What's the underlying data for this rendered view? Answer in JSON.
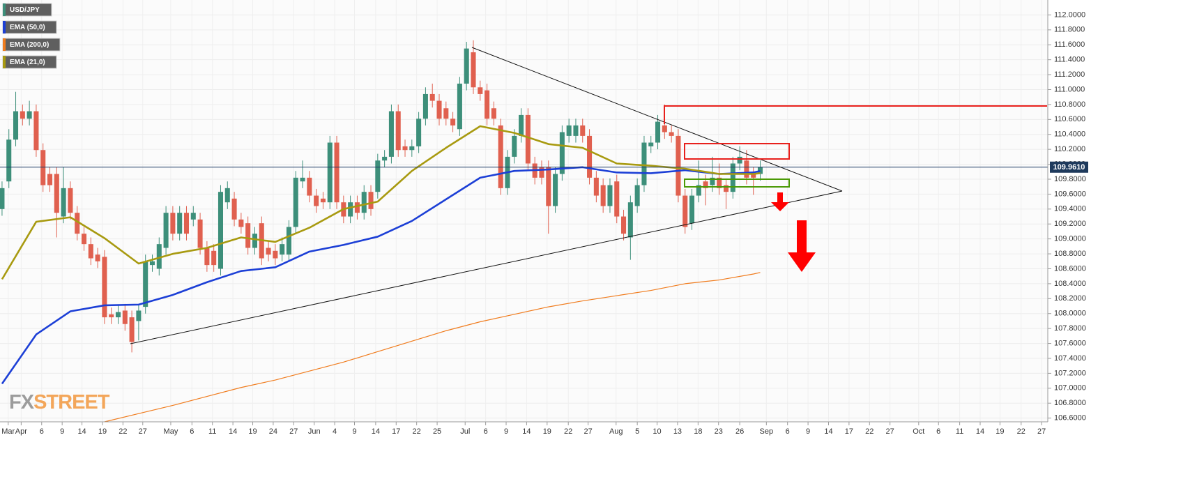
{
  "chart_data": {
    "type": "candlestick",
    "xlim": [
      -0.3,
      153.1
    ],
    "ylim": [
      106.55,
      112.2
    ],
    "grid": true,
    "yticks": [
      {
        "value": 106.6,
        "label": "106.6000"
      },
      {
        "value": 106.8,
        "label": "106.8000"
      },
      {
        "value": 107.0,
        "label": "107.0000"
      },
      {
        "value": 107.2,
        "label": "107.2000"
      },
      {
        "value": 107.4,
        "label": "107.4000"
      },
      {
        "value": 107.6,
        "label": "107.6000"
      },
      {
        "value": 107.8,
        "label": "107.8000"
      },
      {
        "value": 108.0,
        "label": "108.0000"
      },
      {
        "value": 108.2,
        "label": "108.2000"
      },
      {
        "value": 108.4,
        "label": "108.4000"
      },
      {
        "value": 108.6,
        "label": "108.6000"
      },
      {
        "value": 108.8,
        "label": "108.8000"
      },
      {
        "value": 109.0,
        "label": "109.0000"
      },
      {
        "value": 109.2,
        "label": "109.2000"
      },
      {
        "value": 109.4,
        "label": "109.4000"
      },
      {
        "value": 109.6,
        "label": "109.6000"
      },
      {
        "value": 109.8,
        "label": "109.8000"
      },
      {
        "value": 110.0,
        "label": "110.0000"
      },
      {
        "value": 110.2,
        "label": "110.2000"
      },
      {
        "value": 110.4,
        "label": "110.4000"
      },
      {
        "value": 110.6,
        "label": "110.6000"
      },
      {
        "value": 110.8,
        "label": "110.8000"
      },
      {
        "value": 111.0,
        "label": "111.0000"
      },
      {
        "value": 111.2,
        "label": "111.2000"
      },
      {
        "value": 111.4,
        "label": "111.4000"
      },
      {
        "value": 111.6,
        "label": "111.6000"
      },
      {
        "value": 111.8,
        "label": "111.8000"
      },
      {
        "value": 112.0,
        "label": "112.0000"
      }
    ],
    "xticks": [
      {
        "value": 0.9,
        "label": "Mar"
      },
      {
        "value": 2.8,
        "label": "Apr"
      },
      {
        "value": 5.8,
        "label": "6"
      },
      {
        "value": 8.8,
        "label": "9"
      },
      {
        "value": 11.7,
        "label": "14"
      },
      {
        "value": 14.7,
        "label": "19"
      },
      {
        "value": 17.7,
        "label": "22"
      },
      {
        "value": 20.6,
        "label": "27"
      },
      {
        "value": 24.7,
        "label": "May"
      },
      {
        "value": 27.8,
        "label": "6"
      },
      {
        "value": 30.8,
        "label": "11"
      },
      {
        "value": 33.8,
        "label": "14"
      },
      {
        "value": 36.7,
        "label": "19"
      },
      {
        "value": 39.7,
        "label": "24"
      },
      {
        "value": 42.7,
        "label": "27"
      },
      {
        "value": 45.7,
        "label": "Jun"
      },
      {
        "value": 48.7,
        "label": "4"
      },
      {
        "value": 51.6,
        "label": "9"
      },
      {
        "value": 54.7,
        "label": "14"
      },
      {
        "value": 57.7,
        "label": "17"
      },
      {
        "value": 60.7,
        "label": "22"
      },
      {
        "value": 63.7,
        "label": "25"
      },
      {
        "value": 67.8,
        "label": "Jul"
      },
      {
        "value": 70.8,
        "label": "6"
      },
      {
        "value": 73.8,
        "label": "9"
      },
      {
        "value": 76.8,
        "label": "14"
      },
      {
        "value": 79.8,
        "label": "19"
      },
      {
        "value": 82.9,
        "label": "22"
      },
      {
        "value": 85.8,
        "label": "27"
      },
      {
        "value": 89.9,
        "label": "Aug"
      },
      {
        "value": 93.0,
        "label": "5"
      },
      {
        "value": 95.9,
        "label": "10"
      },
      {
        "value": 98.9,
        "label": "13"
      },
      {
        "value": 101.9,
        "label": "18"
      },
      {
        "value": 104.9,
        "label": "23"
      },
      {
        "value": 108.0,
        "label": "26"
      },
      {
        "value": 111.9,
        "label": "Sep"
      },
      {
        "value": 115.0,
        "label": "6"
      },
      {
        "value": 118.0,
        "label": "9"
      },
      {
        "value": 121.0,
        "label": "14"
      },
      {
        "value": 124.0,
        "label": "17"
      },
      {
        "value": 127.0,
        "label": "22"
      },
      {
        "value": 130.0,
        "label": "27"
      },
      {
        "value": 134.2,
        "label": "Oct"
      },
      {
        "value": 137.1,
        "label": "6"
      },
      {
        "value": 140.2,
        "label": "11"
      },
      {
        "value": 143.2,
        "label": "14"
      },
      {
        "value": 146.1,
        "label": "19"
      },
      {
        "value": 149.2,
        "label": "22"
      },
      {
        "value": 152.2,
        "label": "27"
      }
    ],
    "last_price": {
      "value": 109.961,
      "label": "109.9610"
    },
    "logo": {
      "fx": "FX",
      "street": "STREET"
    },
    "series": [
      {
        "name": "USD/JPY",
        "type": "candlestick",
        "color": "#3d8f7a",
        "down_color": "#e0604f",
        "open": [
          109.4,
          109.77,
          110.33,
          110.71,
          110.61,
          110.71,
          110.19,
          109.87,
          109.87,
          109.3,
          109.68,
          109.35,
          109.07,
          108.93,
          108.79,
          108.76,
          107.99,
          107.95,
          108.04,
          107.95,
          107.9,
          108.09,
          108.65,
          108.6,
          108.88,
          109.35,
          109.07,
          109.35,
          109.26,
          109.26,
          108.88,
          108.84,
          108.6,
          109.49,
          109.54,
          109.26,
          109.21,
          108.88,
          109.21,
          108.88,
          108.84,
          108.79,
          108.79,
          109.16,
          109.77,
          109.82,
          109.58,
          109.54,
          109.49,
          110.29,
          109.49,
          109.3,
          109.49,
          109.35,
          109.63,
          109.63,
          110.05,
          110.1,
          110.71,
          110.24,
          110.19,
          110.24,
          110.61,
          110.94,
          110.85,
          110.75,
          110.61,
          110.47,
          111.08,
          111.5,
          111.03,
          110.99,
          110.75,
          110.52,
          109.68,
          110.1,
          110.38,
          110.66,
          110.01,
          109.96,
          109.96,
          109.44,
          109.87,
          110.38,
          110.38,
          110.52,
          110.38,
          109.82,
          109.72,
          109.44,
          109.77,
          109.3,
          109.02,
          109.44,
          109.72,
          110.24,
          110.29,
          110.52,
          110.43,
          110.38,
          109.58,
          109.21,
          109.58,
          109.77,
          109.72,
          109.82,
          109.72,
          109.63,
          110.01,
          110.05,
          109.87,
          109.87
        ],
        "high": [
          109.77,
          110.47,
          110.97,
          110.8,
          110.85,
          110.8,
          110.28,
          109.96,
          109.96,
          109.96,
          109.77,
          109.44,
          109.16,
          109.02,
          108.88,
          108.85,
          108.08,
          108.11,
          108.13,
          108.04,
          108.13,
          108.79,
          108.79,
          109.02,
          109.44,
          109.44,
          109.44,
          109.44,
          109.44,
          109.35,
          108.97,
          108.93,
          109.72,
          109.77,
          109.63,
          109.35,
          109.3,
          109.16,
          109.3,
          108.97,
          108.93,
          109.02,
          109.25,
          109.91,
          110.05,
          109.91,
          109.67,
          109.63,
          110.38,
          110.38,
          109.58,
          109.58,
          109.58,
          109.72,
          109.72,
          110.14,
          110.19,
          110.8,
          110.8,
          110.33,
          110.33,
          110.7,
          111.03,
          111.08,
          110.94,
          110.84,
          110.7,
          111.17,
          111.64,
          111.66,
          111.12,
          111.08,
          110.84,
          110.61,
          110.19,
          110.47,
          110.75,
          110.75,
          110.1,
          110.05,
          110.05,
          109.96,
          110.52,
          110.61,
          110.61,
          110.61,
          110.47,
          109.91,
          109.81,
          109.81,
          109.86,
          109.39,
          109.58,
          109.81,
          110.38,
          110.38,
          110.66,
          110.8,
          110.52,
          110.47,
          109.67,
          109.67,
          110.05,
          109.86,
          110.1,
          110.01,
          109.81,
          110.1,
          110.24,
          110.19,
          109.96,
          110.05
        ],
        "low": [
          109.31,
          109.68,
          110.24,
          110.52,
          110.52,
          110.1,
          109.63,
          109.63,
          109.02,
          109.21,
          109.26,
          108.98,
          108.84,
          108.65,
          108.61,
          107.86,
          107.86,
          107.86,
          107.77,
          107.48,
          107.64,
          108.0,
          108.56,
          108.51,
          108.79,
          108.98,
          108.98,
          108.98,
          109.17,
          108.79,
          108.56,
          108.56,
          108.51,
          109.4,
          109.17,
          109.07,
          108.79,
          108.79,
          108.65,
          108.7,
          108.65,
          108.7,
          108.7,
          109.07,
          109.68,
          109.49,
          109.35,
          109.4,
          109.4,
          109.4,
          109.21,
          109.21,
          109.26,
          109.26,
          109.31,
          109.54,
          109.96,
          110.01,
          110.1,
          110.1,
          110.1,
          110.15,
          110.52,
          110.76,
          110.52,
          110.52,
          110.43,
          110.38,
          110.99,
          110.94,
          110.85,
          110.52,
          110.52,
          109.59,
          109.59,
          110.01,
          110.29,
          109.92,
          109.73,
          109.73,
          109.07,
          109.35,
          109.78,
          110.29,
          110.29,
          110.29,
          109.73,
          109.49,
          109.35,
          109.35,
          109.21,
          108.98,
          108.72,
          109.35,
          109.63,
          110.15,
          110.2,
          110.34,
          110.29,
          109.49,
          109.07,
          109.12,
          109.49,
          109.45,
          109.63,
          109.59,
          109.4,
          109.54,
          109.92,
          109.73,
          109.59,
          109.78
        ],
        "close": [
          109.68,
          110.33,
          110.71,
          110.61,
          110.71,
          110.19,
          109.72,
          109.72,
          109.35,
          109.68,
          109.35,
          109.07,
          108.93,
          108.74,
          108.7,
          107.95,
          107.95,
          108.02,
          107.86,
          107.62,
          108.04,
          108.7,
          108.7,
          108.93,
          109.35,
          109.07,
          109.35,
          109.07,
          109.35,
          108.88,
          108.65,
          108.65,
          109.63,
          109.68,
          109.26,
          109.16,
          108.88,
          109.07,
          108.74,
          108.79,
          108.74,
          108.93,
          109.16,
          109.82,
          109.82,
          109.58,
          109.44,
          109.49,
          110.29,
          109.49,
          109.3,
          109.49,
          109.35,
          109.63,
          109.4,
          110.05,
          110.1,
          110.71,
          110.19,
          110.19,
          110.24,
          110.61,
          110.94,
          110.85,
          110.61,
          110.61,
          110.52,
          111.08,
          111.55,
          111.03,
          110.94,
          110.61,
          110.61,
          109.68,
          110.1,
          110.38,
          110.66,
          110.01,
          109.82,
          109.82,
          109.44,
          109.87,
          110.43,
          110.52,
          110.52,
          110.38,
          109.82,
          109.58,
          109.44,
          109.72,
          109.3,
          109.07,
          109.49,
          109.72,
          110.29,
          110.29,
          110.57,
          110.43,
          110.38,
          109.58,
          109.16,
          109.58,
          109.72,
          109.68,
          109.82,
          109.68,
          109.63,
          110.01,
          110.1,
          109.82,
          109.82,
          109.96
        ]
      },
      {
        "name": "EMA (50,0)",
        "type": "line",
        "color": "#1c3fd6",
        "x": [
          0,
          5,
          10,
          15,
          20,
          25,
          30,
          35,
          40,
          45,
          50,
          55,
          60,
          65,
          70,
          75,
          80,
          85,
          90,
          95,
          100,
          105,
          110,
          111
        ],
        "values": [
          107.06,
          107.72,
          108.03,
          108.11,
          108.12,
          108.25,
          108.42,
          108.57,
          108.62,
          108.83,
          108.92,
          109.03,
          109.24,
          109.53,
          109.82,
          109.91,
          109.93,
          109.96,
          109.89,
          109.88,
          109.92,
          109.87,
          109.89,
          109.91
        ]
      },
      {
        "name": "EMA (200,0)",
        "type": "line",
        "color": "#f07c1e",
        "x": [
          15,
          20,
          25,
          30,
          35,
          40,
          45,
          50,
          55,
          60,
          65,
          70,
          75,
          80,
          85,
          90,
          95,
          100,
          105,
          110,
          111
        ],
        "values": [
          106.55,
          106.66,
          106.77,
          106.89,
          107.01,
          107.11,
          107.23,
          107.35,
          107.49,
          107.63,
          107.77,
          107.89,
          107.99,
          108.09,
          108.17,
          108.24,
          108.31,
          108.4,
          108.45,
          108.53,
          108.55
        ]
      },
      {
        "name": "EMA (21,0)",
        "type": "line",
        "color": "#a89a10",
        "x": [
          0,
          5,
          10,
          15,
          20,
          25,
          30,
          35,
          40,
          45,
          50,
          55,
          60,
          65,
          70,
          75,
          80,
          85,
          90,
          95,
          100,
          105,
          110,
          111
        ],
        "values": [
          108.46,
          109.23,
          109.29,
          109.01,
          108.67,
          108.8,
          108.88,
          109.02,
          108.96,
          109.15,
          109.4,
          109.5,
          109.91,
          110.22,
          110.51,
          110.42,
          110.27,
          110.22,
          110.01,
          109.98,
          109.94,
          109.87,
          109.87,
          109.88
        ]
      }
    ]
  }
}
